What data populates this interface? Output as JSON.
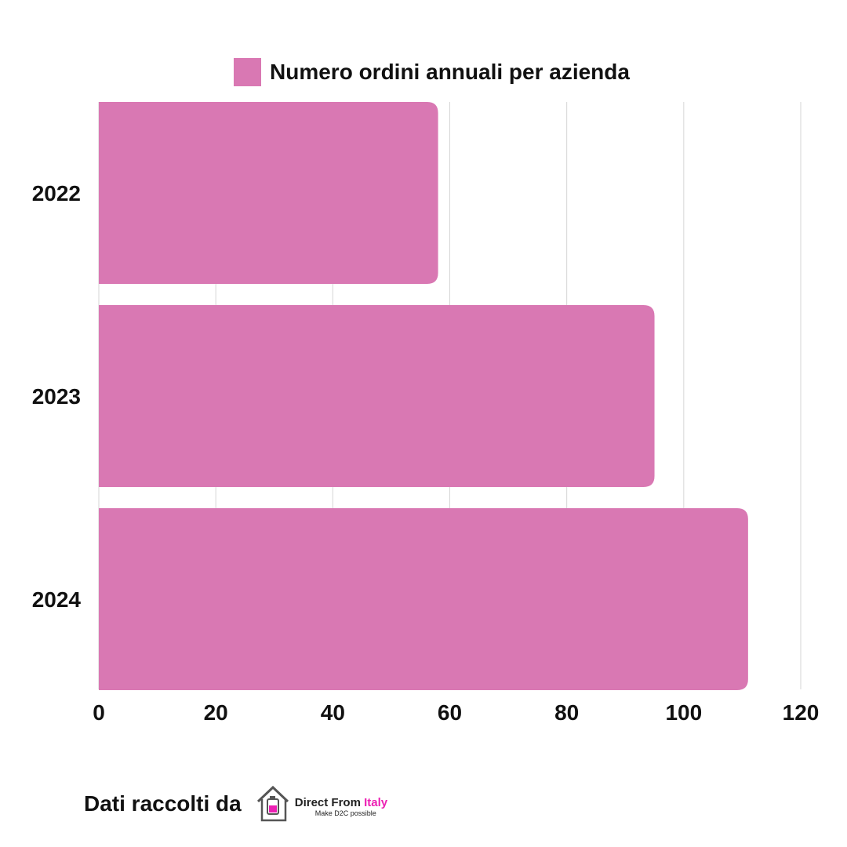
{
  "chart_data": {
    "type": "bar",
    "orientation": "horizontal",
    "categories": [
      "2022",
      "2023",
      "2024"
    ],
    "series": [
      {
        "name": "Numero ordini annuali per azienda",
        "values": [
          58,
          95,
          111
        ],
        "color": "#d978b3"
      }
    ],
    "xlim": [
      0,
      120
    ],
    "x_ticks": [
      "0",
      "20",
      "40",
      "60",
      "80",
      "100",
      "120"
    ],
    "grid": true,
    "legend_position": "top"
  },
  "footer": {
    "text": "Dati raccolti da",
    "logo_name": "Direct From",
    "logo_accent": "Italy",
    "logo_tagline": "Make D2C possible",
    "accent_color": "#ec1fb3"
  },
  "icons": [
    "house-logo-icon"
  ]
}
